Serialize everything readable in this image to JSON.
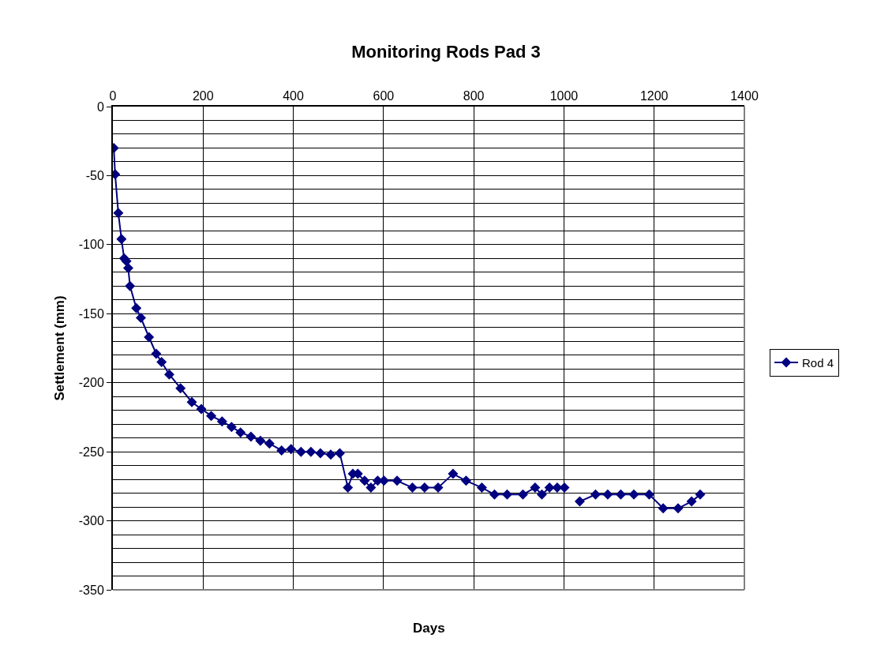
{
  "chart_data": {
    "type": "line",
    "title": "Monitoring Rods Pad 3",
    "xlabel": "Days",
    "ylabel": "Settlement (mm)",
    "x": [
      2,
      5,
      12,
      19,
      25,
      30,
      34,
      38,
      52,
      62,
      80,
      96,
      108,
      125,
      150,
      175,
      196,
      218,
      242,
      263,
      283,
      306,
      327,
      347,
      374,
      395,
      417,
      439,
      460,
      483,
      503,
      521,
      532,
      543,
      558,
      572,
      587,
      601,
      630,
      664,
      691,
      721,
      754,
      783,
      818,
      846,
      874,
      909,
      936,
      951,
      968,
      985,
      1001,
      1018,
      1035,
      1070,
      1097,
      1126,
      1155,
      1189,
      1220,
      1253,
      1283,
      1302
    ],
    "series": [
      {
        "name": "Rod 4",
        "color": "#000080",
        "values": [
          -30,
          -49,
          -77,
          -96,
          -110,
          -112,
          -117,
          -130,
          -146,
          -153,
          -167,
          -179,
          -185,
          -194,
          -204,
          -214,
          -219,
          -224,
          -228,
          -232,
          -236,
          -239,
          -242,
          -244,
          -249,
          -248,
          -250,
          -250,
          -251,
          -252,
          -251,
          -276,
          -266,
          -266,
          -271,
          -276,
          -271,
          -271,
          -271,
          -276,
          -276,
          -276,
          -266,
          -271,
          -276,
          -281,
          -281,
          -281,
          -276,
          -281,
          -276,
          -276,
          -276,
          null,
          -286,
          -281,
          -281,
          -281,
          -281,
          -281,
          -291,
          -291,
          -286,
          -281
        ]
      }
    ],
    "xlim": [
      0,
      1400
    ],
    "ylim": [
      -350,
      0
    ],
    "xticks": [
      0,
      200,
      400,
      600,
      800,
      1000,
      1200,
      1400
    ],
    "yticks": [
      0,
      {
        "value": -10,
        "label": null
      },
      {
        "value": -20,
        "label": null
      },
      {
        "value": -30,
        "label": null
      },
      {
        "value": -40,
        "label": null
      },
      -50,
      {
        "value": -60,
        "label": null
      },
      {
        "value": -70,
        "label": null
      },
      {
        "value": -80,
        "label": null
      },
      {
        "value": -90,
        "label": null
      },
      -100,
      {
        "value": -110,
        "label": null
      },
      {
        "value": -120,
        "label": null
      },
      {
        "value": -130,
        "label": null
      },
      {
        "value": -140,
        "label": null
      },
      -150,
      {
        "value": -160,
        "label": null
      },
      {
        "value": -170,
        "label": null
      },
      {
        "value": -180,
        "label": null
      },
      {
        "value": -190,
        "label": null
      },
      -200,
      {
        "value": -210,
        "label": null
      },
      {
        "value": -220,
        "label": null
      },
      {
        "value": -230,
        "label": null
      },
      {
        "value": -240,
        "label": null
      },
      -250,
      {
        "value": -260,
        "label": null
      },
      {
        "value": -270,
        "label": null
      },
      {
        "value": -280,
        "label": null
      },
      {
        "value": -290,
        "label": null
      },
      -300,
      {
        "value": -310,
        "label": null
      },
      {
        "value": -320,
        "label": null
      },
      {
        "value": -330,
        "label": null
      },
      {
        "value": -340,
        "label": null
      },
      -350
    ],
    "grid": true,
    "legend": "right",
    "marker": "diamond",
    "line_style": "solid"
  }
}
